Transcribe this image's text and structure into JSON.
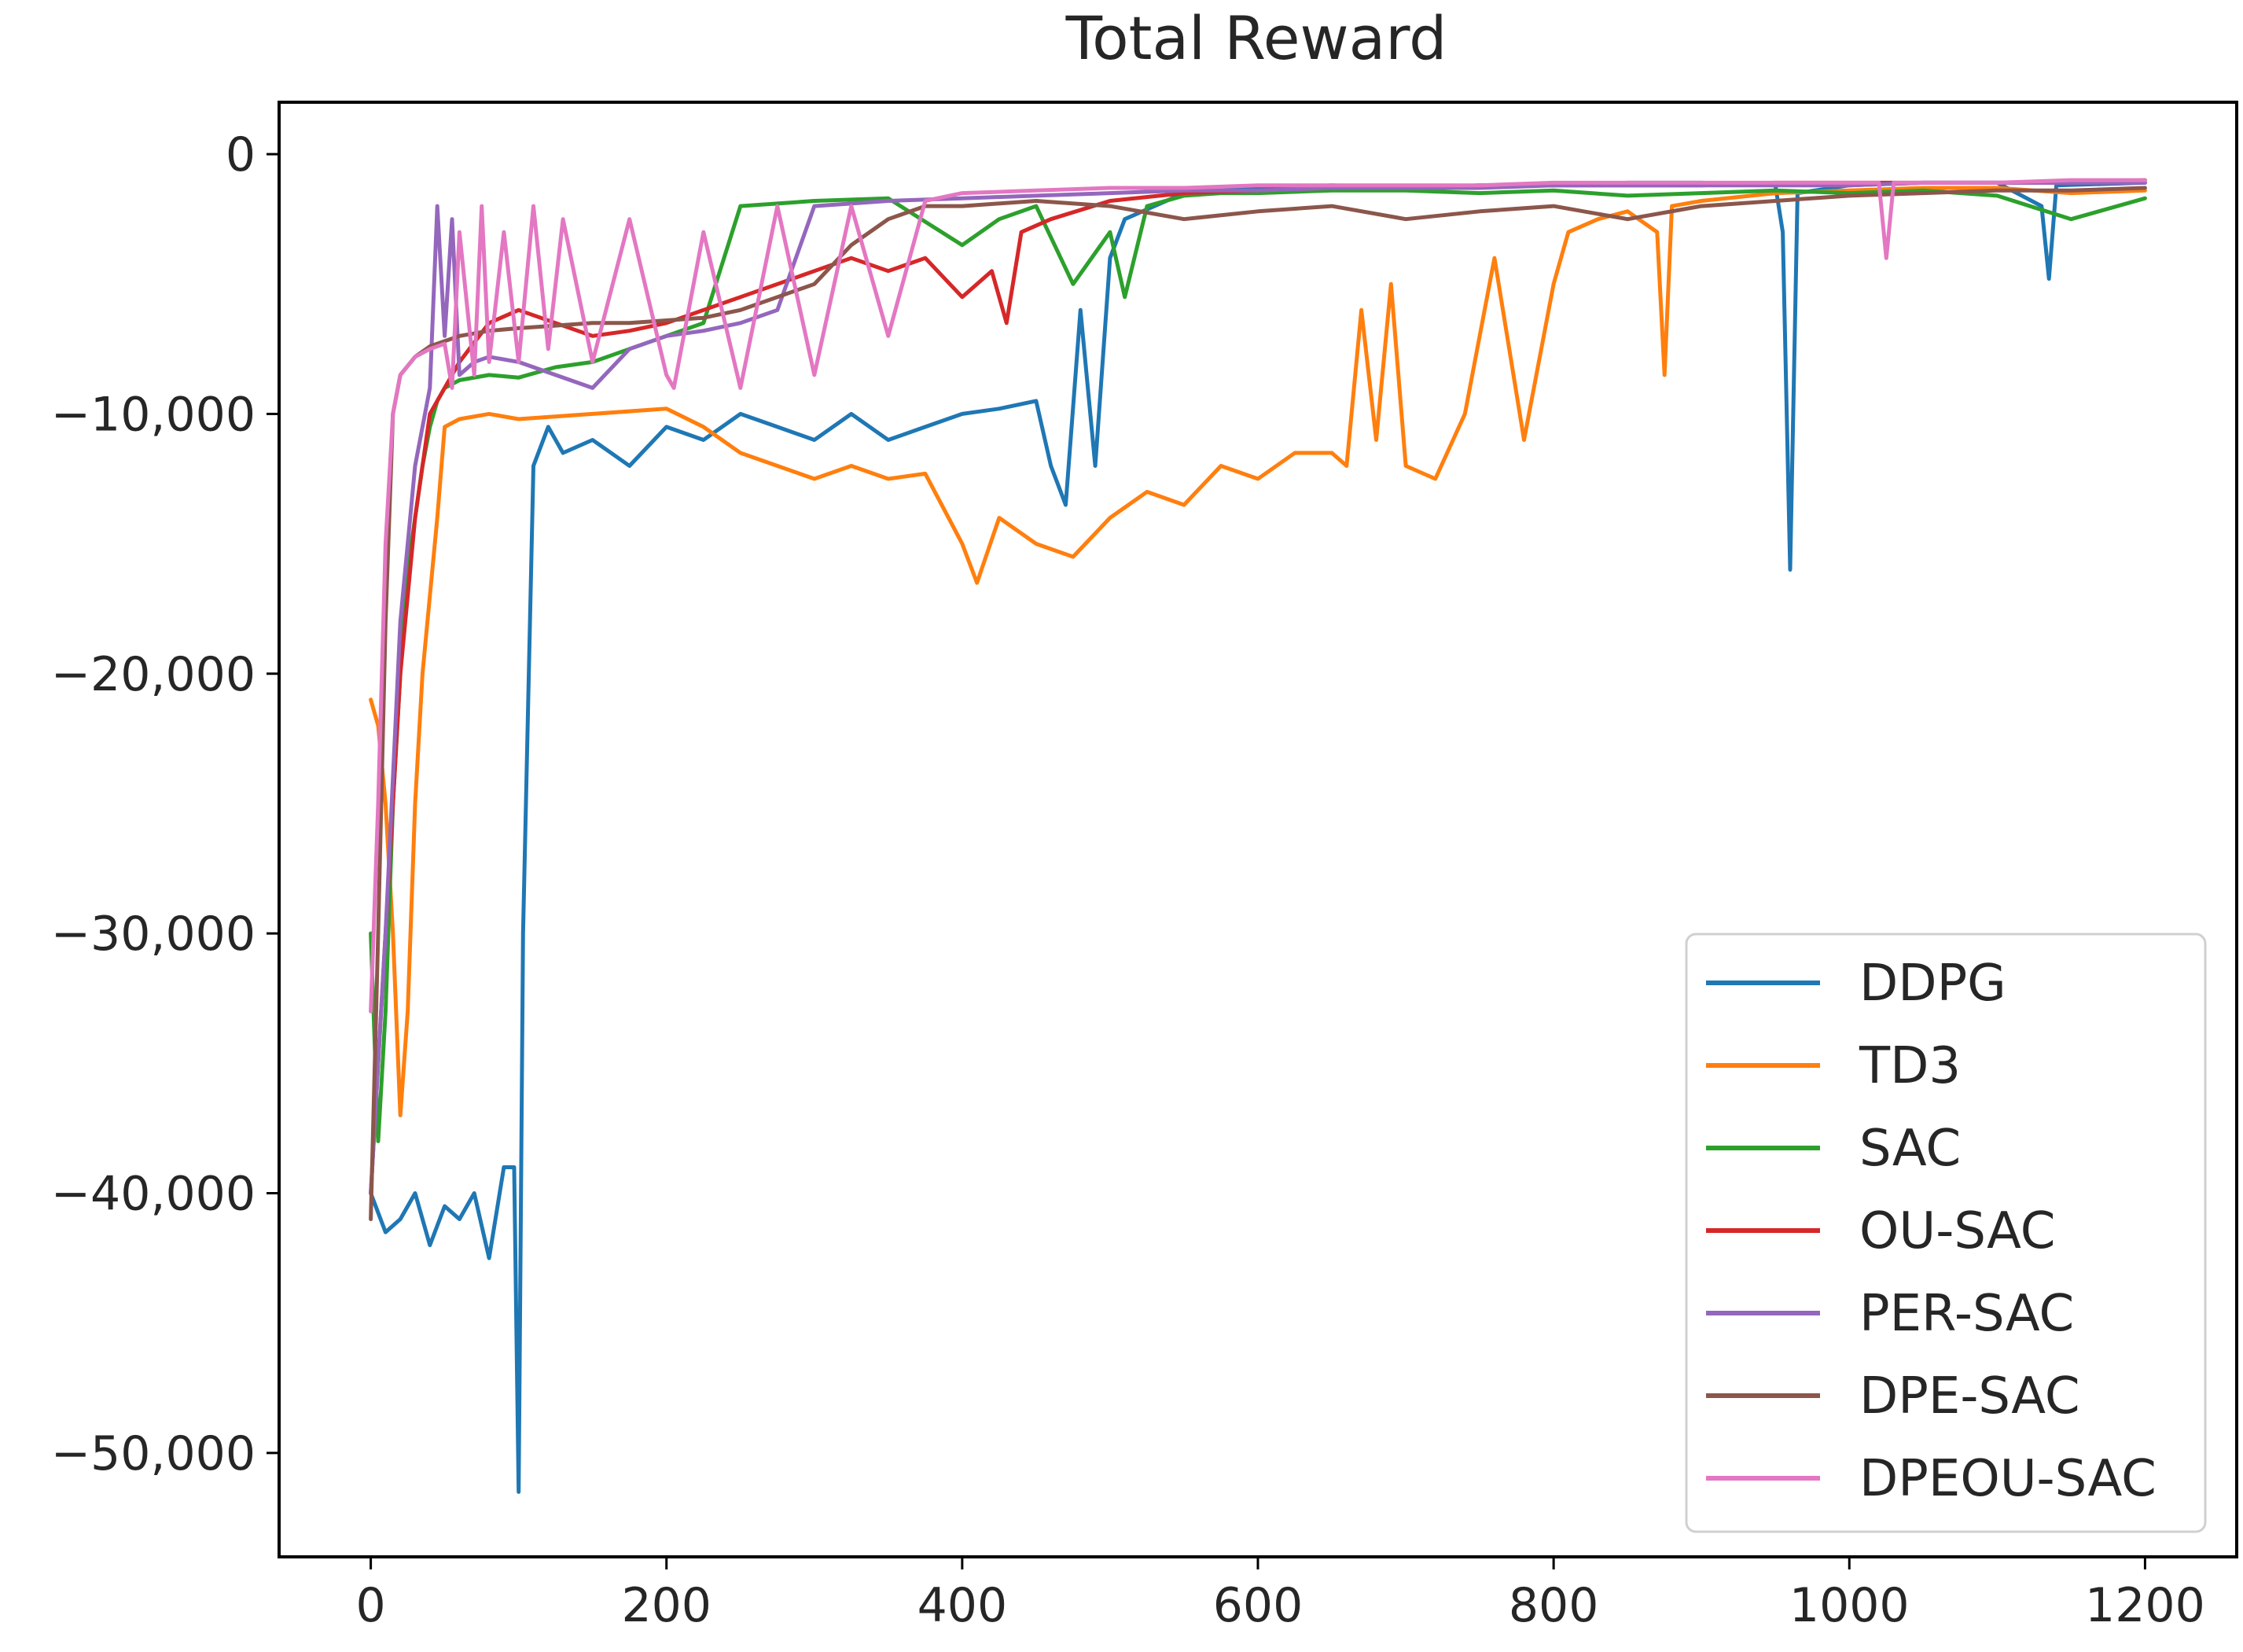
{
  "chart_data": {
    "type": "line",
    "title": "Total Reward",
    "xlabel": "",
    "ylabel": "",
    "xlim": [
      -62,
      1262
    ],
    "ylim": [
      -54000,
      2000
    ],
    "xticks": [
      0,
      200,
      400,
      600,
      800,
      1000,
      1200
    ],
    "xtick_labels": [
      "0",
      "200",
      "400",
      "600",
      "800",
      "1000",
      "1200"
    ],
    "yticks": [
      0,
      -10000,
      -20000,
      -30000,
      -40000,
      -50000
    ],
    "ytick_labels": [
      "0",
      "−10,000",
      "−20,000",
      "−30,000",
      "−40,000",
      "−50,000"
    ],
    "grid": false,
    "legend_position": "lower-right",
    "series": [
      {
        "name": "DDPG",
        "color": "#1f77b4",
        "x": [
          0,
          10,
          20,
          30,
          40,
          50,
          60,
          70,
          80,
          90,
          97,
          100,
          103,
          110,
          120,
          130,
          150,
          175,
          200,
          225,
          250,
          275,
          300,
          325,
          350,
          375,
          400,
          425,
          450,
          460,
          470,
          480,
          490,
          500,
          510,
          550,
          600,
          650,
          700,
          750,
          800,
          850,
          900,
          950,
          955,
          960,
          965,
          1000,
          1050,
          1100,
          1130,
          1135,
          1140,
          1200
        ],
        "y": [
          -40000,
          -41500,
          -41000,
          -40000,
          -42000,
          -40500,
          -41000,
          -40000,
          -42500,
          -39000,
          -39000,
          -51500,
          -30000,
          -12000,
          -10500,
          -11500,
          -11000,
          -12000,
          -10500,
          -11000,
          -10000,
          -10500,
          -11000,
          -10000,
          -11000,
          -10500,
          -10000,
          -9800,
          -9500,
          -12000,
          -13500,
          -6000,
          -12000,
          -4000,
          -2500,
          -1500,
          -1300,
          -1200,
          -1300,
          -1200,
          -1200,
          -1100,
          -1100,
          -1200,
          -3000,
          -16000,
          -1500,
          -1200,
          -1100,
          -1100,
          -2000,
          -4800,
          -1200,
          -1100
        ]
      },
      {
        "name": "TD3",
        "color": "#ff7f0e",
        "x": [
          0,
          5,
          10,
          15,
          20,
          25,
          30,
          35,
          40,
          45,
          50,
          60,
          80,
          100,
          150,
          200,
          225,
          250,
          275,
          300,
          325,
          350,
          375,
          400,
          410,
          425,
          450,
          475,
          500,
          525,
          550,
          575,
          600,
          625,
          650,
          660,
          670,
          680,
          690,
          700,
          720,
          740,
          760,
          780,
          800,
          810,
          830,
          850,
          870,
          875,
          880,
          900,
          950,
          1000,
          1050,
          1100,
          1150,
          1200
        ],
        "y": [
          -21000,
          -22000,
          -25000,
          -30000,
          -37000,
          -33000,
          -25000,
          -20000,
          -17000,
          -14000,
          -10500,
          -10200,
          -10000,
          -10200,
          -10000,
          -9800,
          -10500,
          -11500,
          -12000,
          -12500,
          -12000,
          -12500,
          -12300,
          -15000,
          -16500,
          -14000,
          -15000,
          -15500,
          -14000,
          -13000,
          -13500,
          -12000,
          -12500,
          -11500,
          -11500,
          -12000,
          -6000,
          -11000,
          -5000,
          -12000,
          -12500,
          -10000,
          -4000,
          -11000,
          -5000,
          -3000,
          -2500,
          -2200,
          -3000,
          -8500,
          -2000,
          -1800,
          -1500,
          -1400,
          -1300,
          -1300,
          -1500,
          -1400
        ]
      },
      {
        "name": "SAC",
        "color": "#2ca02c",
        "x": [
          0,
          5,
          10,
          15,
          20,
          25,
          30,
          35,
          40,
          45,
          50,
          60,
          80,
          100,
          125,
          150,
          175,
          200,
          225,
          250,
          300,
          350,
          400,
          425,
          450,
          475,
          500,
          510,
          525,
          550,
          575,
          600,
          650,
          700,
          750,
          800,
          850,
          900,
          950,
          1000,
          1050,
          1100,
          1150,
          1200
        ],
        "y": [
          -30000,
          -38000,
          -33000,
          -25000,
          -20000,
          -16000,
          -14000,
          -12000,
          -10500,
          -9500,
          -9000,
          -8700,
          -8500,
          -8600,
          -8200,
          -8000,
          -7500,
          -7000,
          -6500,
          -2000,
          -1800,
          -1700,
          -3500,
          -2500,
          -2000,
          -5000,
          -3000,
          -5500,
          -2000,
          -1600,
          -1500,
          -1500,
          -1400,
          -1400,
          -1500,
          -1400,
          -1600,
          -1500,
          -1400,
          -1500,
          -1400,
          -1600,
          -2500,
          -1700
        ]
      },
      {
        "name": "OU-SAC",
        "color": "#d62728",
        "x": [
          0,
          10,
          20,
          30,
          40,
          50,
          60,
          80,
          100,
          125,
          150,
          175,
          200,
          225,
          250,
          275,
          300,
          325,
          350,
          375,
          400,
          420,
          430,
          440,
          460,
          500,
          550,
          600,
          650,
          700,
          750,
          800,
          850,
          900,
          950,
          1000,
          1050,
          1100,
          1150,
          1200
        ],
        "y": [
          -40000,
          -30000,
          -20000,
          -14000,
          -10000,
          -9000,
          -8000,
          -6500,
          -6000,
          -6500,
          -7000,
          -6800,
          -6500,
          -6000,
          -5500,
          -5000,
          -4500,
          -4000,
          -4500,
          -4000,
          -5500,
          -4500,
          -6500,
          -3000,
          -2500,
          -1800,
          -1500,
          -1400,
          -1300,
          -1300,
          -1200,
          -1200,
          -1200,
          -1200,
          -1100,
          -1100,
          -1100,
          -1100,
          -1100,
          -1000
        ]
      },
      {
        "name": "PER-SAC",
        "color": "#9467bd",
        "x": [
          0,
          10,
          20,
          30,
          40,
          45,
          50,
          55,
          60,
          70,
          80,
          100,
          125,
          150,
          175,
          200,
          225,
          250,
          275,
          300,
          350,
          400,
          450,
          500,
          550,
          600,
          650,
          700,
          750,
          800,
          850,
          900,
          950,
          1000,
          1050,
          1100,
          1150,
          1200
        ],
        "y": [
          -40000,
          -30000,
          -18000,
          -12000,
          -9000,
          -2000,
          -7000,
          -2500,
          -8500,
          -8000,
          -7800,
          -8000,
          -8500,
          -9000,
          -7500,
          -7000,
          -6800,
          -6500,
          -6000,
          -2000,
          -1800,
          -1700,
          -1600,
          -1500,
          -1400,
          -1400,
          -1300,
          -1300,
          -1300,
          -1200,
          -1200,
          -1200,
          -1200,
          -1200,
          -1100,
          -1100,
          -1100,
          -1100
        ]
      },
      {
        "name": "DPE-SAC",
        "color": "#8c564b",
        "x": [
          0,
          5,
          10,
          15,
          20,
          30,
          40,
          50,
          60,
          80,
          100,
          125,
          150,
          175,
          200,
          225,
          250,
          275,
          300,
          325,
          350,
          375,
          400,
          450,
          500,
          550,
          600,
          650,
          700,
          750,
          800,
          850,
          900,
          950,
          1000,
          1050,
          1100,
          1150,
          1200
        ],
        "y": [
          -41000,
          -30000,
          -18000,
          -10000,
          -8500,
          -7800,
          -7400,
          -7200,
          -7000,
          -6800,
          -6700,
          -6600,
          -6500,
          -6500,
          -6400,
          -6300,
          -6000,
          -5500,
          -5000,
          -3500,
          -2500,
          -2000,
          -2000,
          -1800,
          -2000,
          -2500,
          -2200,
          -2000,
          -2500,
          -2200,
          -2000,
          -2500,
          -2000,
          -1800,
          -1600,
          -1500,
          -1400,
          -1400,
          -1300
        ]
      },
      {
        "name": "DPEOU-SAC",
        "color": "#e377c2",
        "x": [
          0,
          5,
          10,
          15,
          20,
          30,
          40,
          50,
          55,
          60,
          70,
          75,
          80,
          90,
          100,
          110,
          120,
          130,
          150,
          175,
          200,
          205,
          225,
          250,
          275,
          300,
          325,
          350,
          375,
          400,
          450,
          500,
          550,
          600,
          650,
          700,
          750,
          800,
          850,
          900,
          950,
          1000,
          1020,
          1025,
          1030,
          1100,
          1150,
          1200
        ],
        "y": [
          -33000,
          -25000,
          -15000,
          -10000,
          -8500,
          -7800,
          -7500,
          -7300,
          -9000,
          -3000,
          -8500,
          -2000,
          -8000,
          -3000,
          -8000,
          -2000,
          -7500,
          -2500,
          -8000,
          -2500,
          -8500,
          -9000,
          -3000,
          -9000,
          -2000,
          -8500,
          -2000,
          -7000,
          -1800,
          -1500,
          -1400,
          -1300,
          -1300,
          -1200,
          -1200,
          -1200,
          -1200,
          -1100,
          -1100,
          -1100,
          -1100,
          -1100,
          -1100,
          -4000,
          -1100,
          -1100,
          -1000,
          -1000
        ]
      }
    ]
  }
}
